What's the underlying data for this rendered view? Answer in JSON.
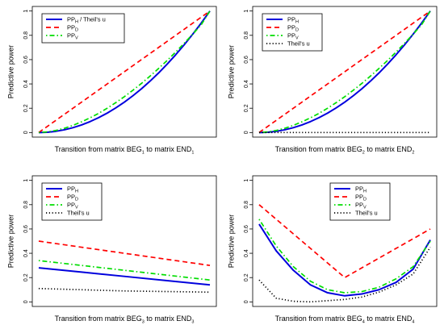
{
  "chart_data": [
    {
      "type": "line",
      "xlabel": {
        "main": "Transition from matrix BEG",
        "sub1": "1",
        "mid": " to matrix END",
        "sub2": "1"
      },
      "ylabel": "Predictive power",
      "ylim": [
        0,
        1
      ],
      "yticks": [
        "0",
        "0.2",
        "0.4",
        "0.6",
        "0.8",
        "1"
      ],
      "grid": false,
      "legend_position": "top-left",
      "x": [
        0,
        0.05,
        0.1,
        0.15,
        0.2,
        0.25,
        0.3,
        0.35,
        0.4,
        0.45,
        0.5,
        0.55,
        0.6,
        0.65,
        0.7,
        0.75,
        0.8,
        0.85,
        0.9,
        0.95,
        1
      ],
      "series": [
        {
          "name": "PP",
          "name_sub": "H",
          "name_suffix": " / Theil's u",
          "color": "#0000dd",
          "style": "solid",
          "values": [
            0.0,
            0.0025,
            0.01,
            0.0225,
            0.04,
            0.0625,
            0.09,
            0.1225,
            0.16,
            0.2025,
            0.25,
            0.3025,
            0.36,
            0.4225,
            0.49,
            0.5625,
            0.64,
            0.7225,
            0.81,
            0.9025,
            1.0
          ]
        },
        {
          "name": "PP",
          "name_sub": "D",
          "name_suffix": "",
          "color": "#ff0000",
          "style": "dashed",
          "values": [
            0.0,
            0.05,
            0.1,
            0.15,
            0.2,
            0.25,
            0.3,
            0.35,
            0.4,
            0.45,
            0.5,
            0.55,
            0.6,
            0.65,
            0.7,
            0.75,
            0.8,
            0.85,
            0.9,
            0.95,
            1.0
          ]
        },
        {
          "name": "PP",
          "name_sub": "V",
          "name_suffix": "",
          "color": "#00dd00",
          "style": "dotdash",
          "values": [
            0.0,
            0.005,
            0.017,
            0.035,
            0.059,
            0.088,
            0.121,
            0.158,
            0.2,
            0.246,
            0.295,
            0.348,
            0.404,
            0.464,
            0.527,
            0.593,
            0.662,
            0.735,
            0.81,
            0.889,
            1.0
          ]
        }
      ]
    },
    {
      "type": "line",
      "xlabel": {
        "main": "Transition from matrix BEG",
        "sub1": "2",
        "mid": " to matrix END",
        "sub2": "2"
      },
      "ylabel": "Predictive power",
      "ylim": [
        0,
        1
      ],
      "yticks": [
        "0",
        "0.2",
        "0.4",
        "0.6",
        "0.8",
        "1"
      ],
      "grid": false,
      "legend_position": "top-left",
      "x": [
        0,
        0.05,
        0.1,
        0.15,
        0.2,
        0.25,
        0.3,
        0.35,
        0.4,
        0.45,
        0.5,
        0.55,
        0.6,
        0.65,
        0.7,
        0.75,
        0.8,
        0.85,
        0.9,
        0.95,
        1
      ],
      "series": [
        {
          "name": "PP",
          "name_sub": "H",
          "name_suffix": "",
          "color": "#0000dd",
          "style": "solid",
          "values": [
            0.0,
            0.0025,
            0.01,
            0.0225,
            0.04,
            0.0625,
            0.09,
            0.1225,
            0.16,
            0.2025,
            0.25,
            0.3025,
            0.36,
            0.4225,
            0.49,
            0.5625,
            0.64,
            0.7225,
            0.81,
            0.9025,
            1.0
          ]
        },
        {
          "name": "PP",
          "name_sub": "D",
          "name_suffix": "",
          "color": "#ff0000",
          "style": "dashed",
          "values": [
            0.0,
            0.05,
            0.1,
            0.15,
            0.2,
            0.25,
            0.3,
            0.35,
            0.4,
            0.45,
            0.5,
            0.55,
            0.6,
            0.65,
            0.7,
            0.75,
            0.8,
            0.85,
            0.9,
            0.95,
            1.0
          ]
        },
        {
          "name": "PP",
          "name_sub": "V",
          "name_suffix": "",
          "color": "#00dd00",
          "style": "dotdash",
          "values": [
            0.0,
            0.005,
            0.017,
            0.035,
            0.059,
            0.088,
            0.121,
            0.158,
            0.2,
            0.246,
            0.295,
            0.348,
            0.404,
            0.464,
            0.527,
            0.593,
            0.662,
            0.735,
            0.81,
            0.889,
            1.0
          ]
        },
        {
          "name": "Theil's u",
          "name_sub": "",
          "name_suffix": "",
          "color": "#000000",
          "style": "dotted",
          "values": [
            0.0,
            0.0,
            0.0,
            0.0,
            0.0,
            0.0,
            0.0,
            0.0,
            0.0,
            0.0,
            0.0,
            0.0,
            0.0,
            0.0,
            0.0,
            0.0,
            0.0,
            0.0,
            0.0,
            0.0,
            0.0
          ]
        }
      ]
    },
    {
      "type": "line",
      "xlabel": {
        "main": "Transition from matrix BEG",
        "sub1": "3",
        "mid": " to matrix END",
        "sub2": "3"
      },
      "ylabel": "Predictive power",
      "ylim": [
        0,
        1
      ],
      "yticks": [
        "0",
        "0.2",
        "0.4",
        "0.6",
        "0.8",
        "1"
      ],
      "grid": false,
      "legend_position": "top-left",
      "x": [
        0,
        0.25,
        0.5,
        0.75,
        1
      ],
      "series": [
        {
          "name": "PP",
          "name_sub": "H",
          "name_suffix": "",
          "color": "#0000dd",
          "style": "solid",
          "values": [
            0.28,
            0.245,
            0.21,
            0.175,
            0.14
          ]
        },
        {
          "name": "PP",
          "name_sub": "D",
          "name_suffix": "",
          "color": "#ff0000",
          "style": "dashed",
          "values": [
            0.5,
            0.45,
            0.4,
            0.35,
            0.3
          ]
        },
        {
          "name": "PP",
          "name_sub": "V",
          "name_suffix": "",
          "color": "#00dd00",
          "style": "dotdash",
          "values": [
            0.34,
            0.3,
            0.26,
            0.22,
            0.18
          ]
        },
        {
          "name": "Theil's u",
          "name_sub": "",
          "name_suffix": "",
          "color": "#000000",
          "style": "dotted",
          "values": [
            0.11,
            0.1,
            0.09,
            0.085,
            0.08
          ]
        }
      ]
    },
    {
      "type": "line",
      "xlabel": {
        "main": "Transition from matrix BEG",
        "sub1": "4",
        "mid": " to matrix END",
        "sub2": "4"
      },
      "ylabel": "Predictive power",
      "ylim": [
        0,
        1
      ],
      "yticks": [
        "0",
        "0.2",
        "0.4",
        "0.6",
        "0.8",
        "1"
      ],
      "grid": false,
      "legend_position": "top-right",
      "x": [
        0,
        0.1,
        0.2,
        0.3,
        0.4,
        0.5,
        0.6,
        0.7,
        0.8,
        0.9,
        1
      ],
      "series": [
        {
          "name": "PP",
          "name_sub": "H",
          "name_suffix": "",
          "color": "#0000dd",
          "style": "solid",
          "values": [
            0.64,
            0.42,
            0.26,
            0.14,
            0.075,
            0.05,
            0.065,
            0.1,
            0.16,
            0.27,
            0.51
          ]
        },
        {
          "name": "PP",
          "name_sub": "D",
          "name_suffix": "",
          "color": "#ff0000",
          "style": "dashed",
          "values": [
            0.8,
            0.68,
            0.56,
            0.44,
            0.32,
            0.2,
            0.28,
            0.36,
            0.44,
            0.52,
            0.6
          ]
        },
        {
          "name": "PP",
          "name_sub": "V",
          "name_suffix": "",
          "color": "#00dd00",
          "style": "dotdash",
          "values": [
            0.68,
            0.46,
            0.29,
            0.17,
            0.1,
            0.075,
            0.085,
            0.12,
            0.19,
            0.29,
            0.5
          ]
        },
        {
          "name": "Theil's u",
          "name_sub": "",
          "name_suffix": "",
          "color": "#000000",
          "style": "dotted",
          "values": [
            0.18,
            0.03,
            0.005,
            0.0,
            0.01,
            0.02,
            0.04,
            0.08,
            0.14,
            0.23,
            0.45
          ]
        }
      ]
    }
  ]
}
